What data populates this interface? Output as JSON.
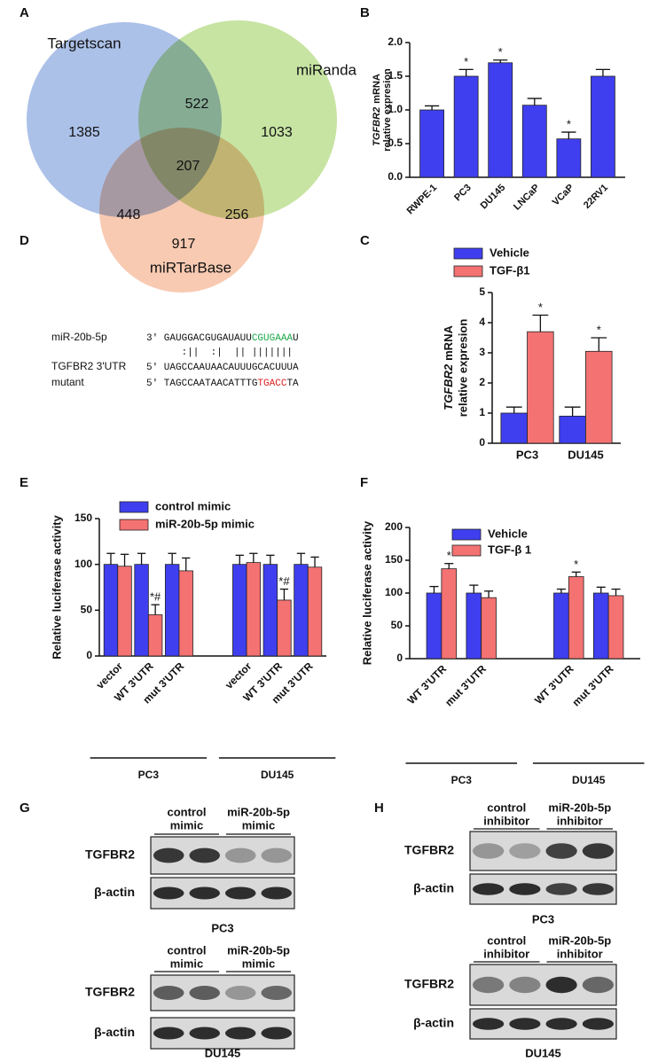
{
  "venn": {
    "letter": "A",
    "sets": [
      {
        "name": "Targetscan",
        "color": "#7f9fdc"
      },
      {
        "name": "miRanda",
        "color": "#a9d672"
      },
      {
        "name": "miRTarBase",
        "color": "#f4ad88"
      }
    ],
    "regions": [
      1385,
      522,
      1033,
      207,
      448,
      256,
      917
    ]
  },
  "alignment": {
    "letter": "D",
    "rows": [
      {
        "name": "miR-20b-5p",
        "parts": [
          {
            "text": "3' GAUGGACGUGAUAUU"
          },
          {
            "text": "CGUGAAA",
            "color": "#1aa84a"
          },
          {
            "text": "U"
          }
        ]
      },
      {
        "parts": [
          {
            "text": "      :||  :|  || |||||||"
          }
        ]
      },
      {
        "name": "TGFBR2 3'UTR",
        "parts": [
          {
            "text": "5' UAGCCAAUAACAUUUGCACUUUA"
          }
        ]
      },
      {
        "name": "mutant",
        "parts": [
          {
            "text": "5' TAGCCAATAACATTTG"
          },
          {
            "text": "TGACC",
            "color": "#e02020"
          },
          {
            "text": "TA"
          }
        ]
      }
    ]
  },
  "chart_data": [
    {
      "letter": "B",
      "type": "bar",
      "ylabel_gene": "TGFBR2",
      "ylabel_unit": "mRNA",
      "ylabel_line2": "relative expresion",
      "categories": [
        "RWPE-1",
        "PC3",
        "DU145",
        "LNCaP",
        "VCaP",
        "22RV1"
      ],
      "series": [
        {
          "color": "#3f3fef",
          "values": [
            1.0,
            1.5,
            1.7,
            1.07,
            0.57,
            1.5
          ],
          "errors": [
            0.06,
            0.1,
            0.04,
            0.1,
            0.1,
            0.1
          ],
          "annotations": [
            null,
            "*",
            "*",
            null,
            "*",
            null
          ]
        }
      ],
      "ylim": [
        0,
        2
      ],
      "yticks": [
        {
          "value": 0,
          "label": "0.0"
        },
        {
          "value": 0.5,
          "label": "0.5"
        },
        {
          "value": 1,
          "label": "1.0"
        },
        {
          "value": 1.5,
          "label": "1.5"
        },
        {
          "value": 2,
          "label": "2.0"
        }
      ]
    },
    {
      "letter": "C",
      "type": "bar",
      "ylabel_gene": "TGFBR2",
      "ylabel_unit": "mRNA",
      "ylabel_line2": "relative expresion",
      "categories": [
        "PC3",
        "DU145"
      ],
      "series": [
        {
          "name": "Vehicle",
          "color": "#3f3fef",
          "values": [
            1.0,
            0.9
          ],
          "errors": [
            0.2,
            0.3
          ],
          "annotations": [
            null,
            null
          ]
        },
        {
          "name": "TGF-β1",
          "color": "#f47272",
          "values": [
            3.7,
            3.05
          ],
          "errors": [
            0.55,
            0.45
          ],
          "annotations": [
            "*",
            "*"
          ]
        }
      ],
      "ylim": [
        0,
        5
      ],
      "yticks": [
        0,
        1,
        2,
        3,
        4,
        5
      ]
    },
    {
      "letter": "E",
      "type": "bar",
      "ylabel": "Relative luciferase activity",
      "categories": [
        "vector",
        "WT 3'UTR",
        "mut 3'UTR",
        "vector",
        "WT 3'UTR",
        "mut 3'UTR"
      ],
      "groups": [
        "PC3",
        "DU145"
      ],
      "series": [
        {
          "name": "control mimic",
          "color": "#3f3fef",
          "values": [
            100,
            100,
            100,
            100,
            100,
            100
          ],
          "errors": [
            12,
            12,
            12,
            10,
            10,
            12
          ],
          "annotations": [
            null,
            null,
            null,
            null,
            null,
            null
          ]
        },
        {
          "name": "miR-20b-5p mimic",
          "color": "#f47272",
          "values": [
            98,
            45,
            93,
            102,
            61,
            97
          ],
          "errors": [
            13,
            11,
            14,
            10,
            12,
            11
          ],
          "annotations": [
            null,
            "*#",
            null,
            null,
            "*#",
            null
          ]
        }
      ],
      "ylim": [
        0,
        150
      ],
      "yticks": [
        0,
        50,
        100,
        150
      ]
    },
    {
      "letter": "F",
      "type": "bar",
      "ylabel": "Relative luciferase activity",
      "categories": [
        "WT 3'UTR",
        "mut 3'UTR",
        "WT 3'UTR",
        "mut 3'UTR"
      ],
      "groups": [
        "PC3",
        "DU145"
      ],
      "series": [
        {
          "name": "Vehicle",
          "color": "#3f3fef",
          "values": [
            100,
            100,
            100,
            100
          ],
          "errors": [
            10,
            12,
            6,
            9
          ],
          "annotations": [
            null,
            null,
            null,
            null
          ]
        },
        {
          "name": "TGF-β 1",
          "color": "#f47272",
          "values": [
            137,
            93,
            125,
            96
          ],
          "errors": [
            8,
            10,
            7,
            10
          ],
          "annotations": [
            "*",
            null,
            "*",
            null
          ]
        }
      ],
      "ylim": [
        0,
        200
      ],
      "yticks": [
        0,
        50,
        100,
        150,
        200
      ]
    }
  ],
  "blots": [
    {
      "letter": "G",
      "panels": [
        {
          "columns": [
            {
              "line1": "control",
              "line2": "mimic"
            },
            {
              "line1": "miR-20b-5p",
              "line2": "mimic"
            }
          ],
          "rows": [
            "TGFBR2",
            "β-actin"
          ],
          "cell_line": "PC3"
        },
        {
          "columns": [
            {
              "line1": "control",
              "line2": "mimic"
            },
            {
              "line1": "miR-20b-5p",
              "line2": "mimic"
            }
          ],
          "rows": [
            "TGFBR2",
            "β-actin"
          ],
          "cell_line": "DU145"
        }
      ]
    },
    {
      "letter": "H",
      "panels": [
        {
          "columns": [
            {
              "line1": "control",
              "line2": "inhibitor"
            },
            {
              "line1": "miR-20b-5p",
              "line2": "inhibitor"
            }
          ],
          "rows": [
            "TGFBR2",
            "β-actin"
          ],
          "cell_line": "PC3"
        },
        {
          "columns": [
            {
              "line1": "control",
              "line2": "inhibitor"
            },
            {
              "line1": "miR-20b-5p",
              "line2": "inhibitor"
            }
          ],
          "rows": [
            "TGFBR2",
            "β-actin"
          ],
          "cell_line": "DU145"
        }
      ]
    }
  ]
}
